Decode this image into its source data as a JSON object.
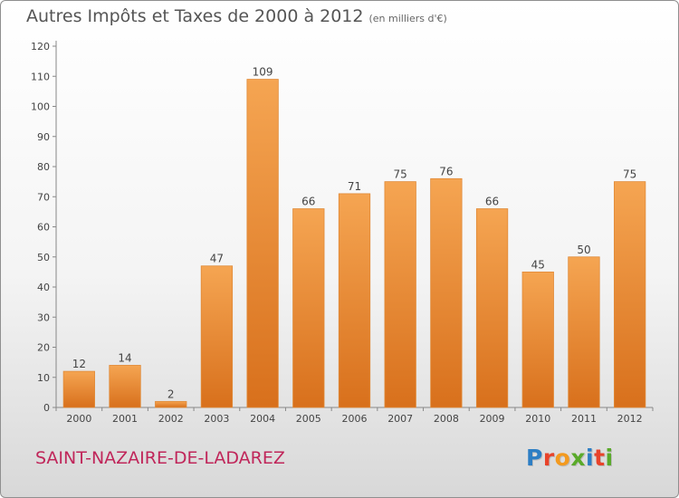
{
  "header": {
    "title": "Autres Impôts et Taxes de 2000 à 2012",
    "subtitle": "(en milliers d'€)"
  },
  "footer": {
    "commune": "SAINT-NAZAIRE-DE-LADAREZ",
    "logo_text": "Proxiti"
  },
  "colors": {
    "bar_light": "#f5a552",
    "bar_dark": "#d8701c",
    "commune_text": "#c0265a",
    "logo_letters": [
      "#2d7ec4",
      "#e8432a",
      "#f39a1f",
      "#5aaa2a",
      "#2d7ec4",
      "#e8432a",
      "#5aaa2a"
    ]
  },
  "chart_data": {
    "type": "bar",
    "title": "Autres Impôts et Taxes de 2000 à 2012",
    "subtitle": "(en milliers d'€)",
    "categories": [
      "2000",
      "2001",
      "2002",
      "2003",
      "2004",
      "2005",
      "2006",
      "2007",
      "2008",
      "2009",
      "2010",
      "2011",
      "2012"
    ],
    "values": [
      12,
      14,
      2,
      47,
      109,
      66,
      71,
      75,
      76,
      66,
      45,
      50,
      75
    ],
    "ylim": [
      0,
      120
    ],
    "yticks": [
      0,
      10,
      20,
      30,
      40,
      50,
      60,
      70,
      80,
      90,
      100,
      110,
      120
    ],
    "grid": false,
    "data_labels": true
  }
}
